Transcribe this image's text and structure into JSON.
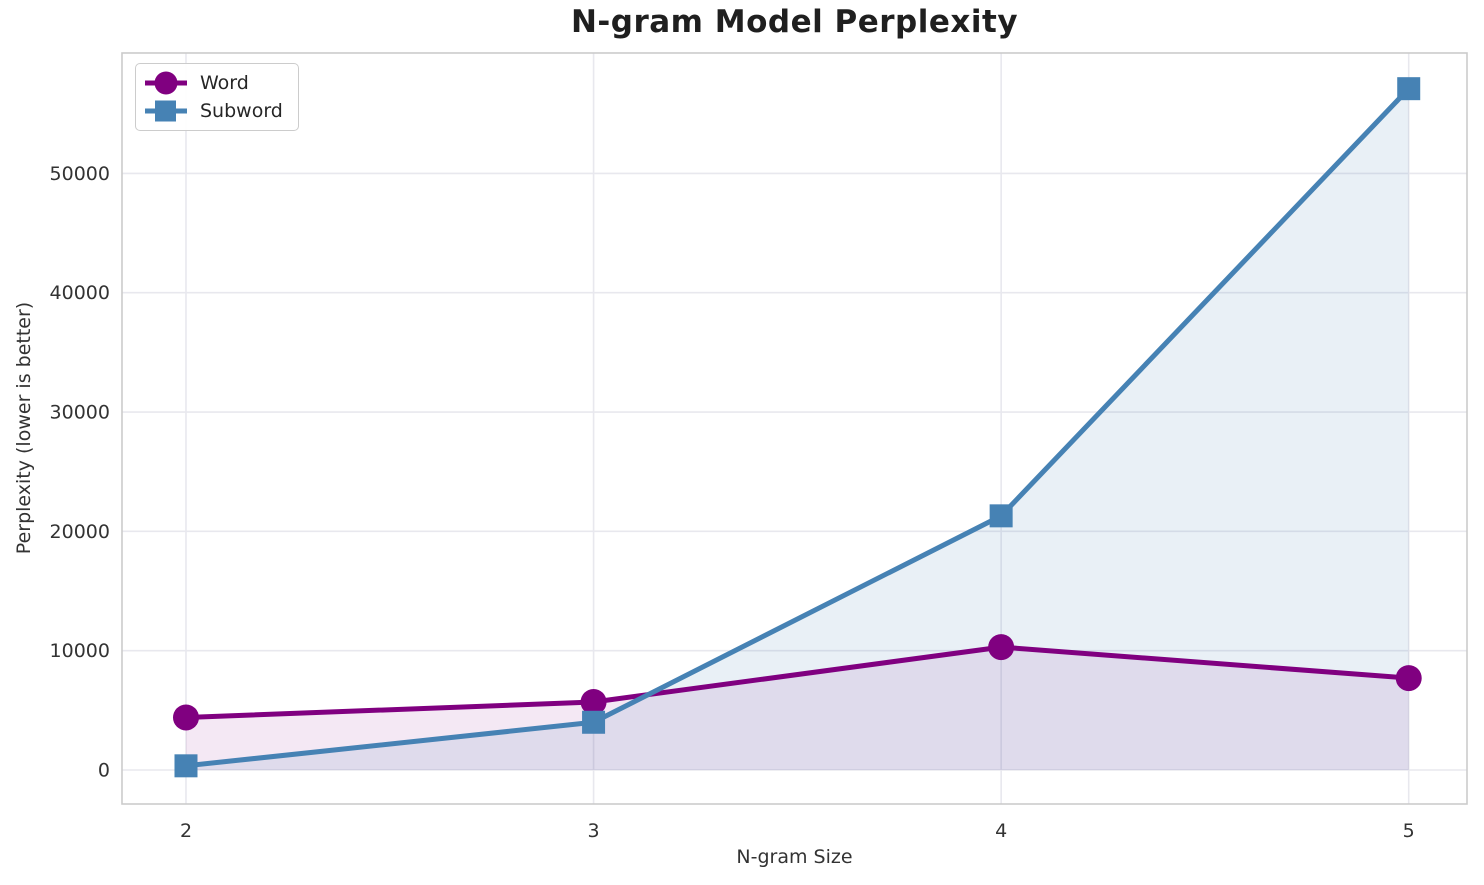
{
  "chart_data": {
    "type": "line",
    "title": "N-gram Model Perplexity",
    "xlabel": "N-gram Size",
    "ylabel": "Perplexity (lower is better)",
    "x": [
      2,
      3,
      4,
      5
    ],
    "series": [
      {
        "name": "Word",
        "values": [
          4400,
          5700,
          10300,
          7700
        ],
        "color": "#800080",
        "marker": "circle",
        "fill_alpha": 0.09
      },
      {
        "name": "Subword",
        "values": [
          350,
          4000,
          21300,
          57100
        ],
        "color": "#4682B4",
        "marker": "square",
        "fill_alpha": 0.12
      }
    ],
    "xticks": [
      2,
      3,
      4,
      5
    ],
    "yticks": [
      0,
      10000,
      20000,
      30000,
      40000,
      50000
    ],
    "xlim": [
      1.843,
      5.143
    ],
    "ylim": [
      -2850,
      60090
    ],
    "grid": true,
    "area_fill_baseline": 0,
    "legend_position": "upper left"
  },
  "styles": {
    "grid_color": "#e8e8ee",
    "spine_color": "#cbcbcb",
    "tick_label_color": "#333333",
    "title_color": "#1f1f1f",
    "axis_label_color": "#333333",
    "legend_border_color": "#cccccc",
    "background": "#ffffff",
    "line_width": 5
  }
}
